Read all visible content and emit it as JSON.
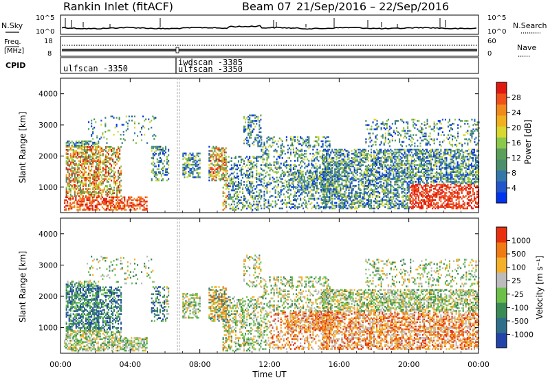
{
  "header": {
    "station": "Rankin Inlet (fitACF)",
    "beam": "Beam 07",
    "dates": "21/Sep/2016 – 22/Sep/2016"
  },
  "top_panels": {
    "nsky_label": "N.Sky",
    "nsearch_label": "N.Search",
    "nsky_ticks": [
      "10^5",
      "10^0"
    ],
    "nsearch_ticks": [
      "10^5",
      "10^0"
    ],
    "freq_label_1": "Freq.",
    "freq_label_2": "[MHz]",
    "freq_ticks": [
      "18",
      "8"
    ],
    "nave_label": "Nave",
    "nave_ticks": [
      "60",
      "0"
    ],
    "cpid_label": "CPID",
    "cpid_entries": [
      {
        "time_hours": 0.0,
        "text": "ulfscan -3350"
      },
      {
        "time_hours": 6.65,
        "text": "iwdscan -3385"
      },
      {
        "time_hours": 6.65,
        "text": "ulfscan -3350"
      }
    ]
  },
  "chart_data": [
    {
      "type": "heatmap",
      "title": "",
      "xlabel": "",
      "ylabel": "Slant Range [km]",
      "xlim": [
        0,
        24
      ],
      "ylim": [
        180,
        4500
      ],
      "yticks": [
        1000,
        2000,
        3000,
        4000
      ],
      "colorbar": {
        "label": "Power [dB]",
        "ticks": [
          4,
          8,
          12,
          16,
          20,
          24,
          28
        ],
        "range": [
          0,
          30
        ],
        "colors": [
          "#0033ee",
          "#2255cc",
          "#3377aa",
          "#4a8f6a",
          "#5aa05a",
          "#8cc84b",
          "#d8d830",
          "#f0b020",
          "#f08a1c",
          "#f0501a",
          "#e01a10"
        ]
      }
    },
    {
      "type": "heatmap",
      "title": "",
      "xlabel": "Time UT",
      "ylabel": "Slant Range [km]",
      "xlim": [
        0,
        24
      ],
      "ylim": [
        180,
        4500
      ],
      "xticks": [
        "00:00",
        "04:00",
        "08:00",
        "12:00",
        "16:00",
        "20:00",
        "00:00"
      ],
      "yticks": [
        1000,
        2000,
        3000,
        4000
      ],
      "colorbar": {
        "label": "Velocity [m s⁻¹]",
        "ticks": [
          "1000",
          "500",
          "100",
          "25",
          "-25",
          "-100",
          "-500",
          "-1000"
        ],
        "colors": [
          "#2244aa",
          "#2e6e8a",
          "#3a8a55",
          "#6cc04a",
          "#bcbcbc",
          "#f5b02a",
          "#f07a14",
          "#e8300e"
        ]
      }
    }
  ]
}
